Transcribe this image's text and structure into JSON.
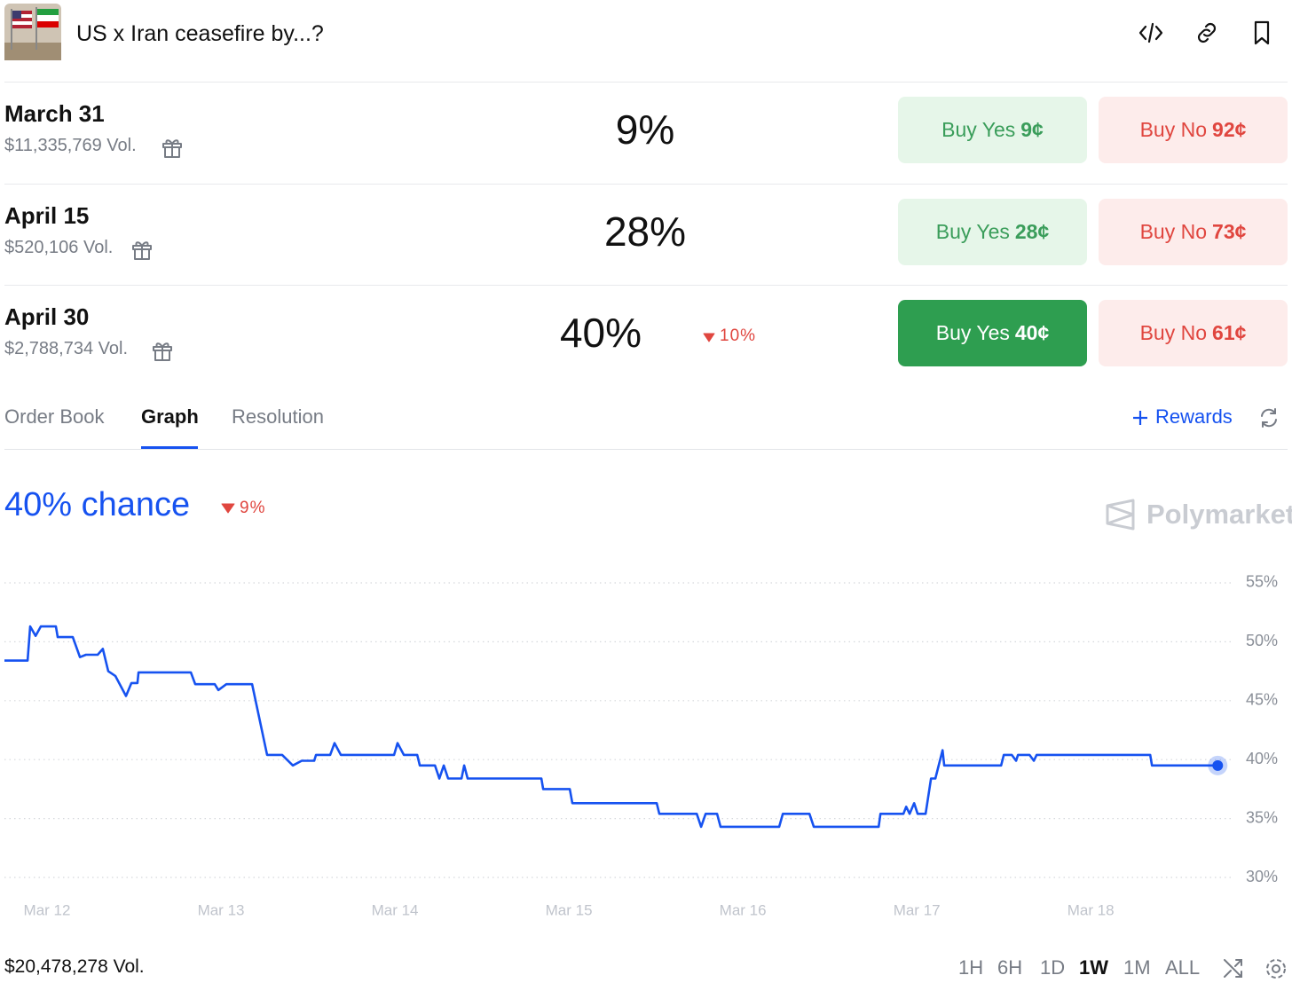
{
  "header": {
    "title": "US x Iran ceasefire by...?"
  },
  "markets": [
    {
      "date": "March 31",
      "volume": "$11,335,769 Vol.",
      "chance": "9%",
      "buy_yes": "Buy Yes",
      "yes_price": "9¢",
      "buy_no": "Buy No",
      "no_price": "92¢"
    },
    {
      "date": "April 15",
      "volume": "$520,106 Vol.",
      "chance": "28%",
      "buy_yes": "Buy Yes",
      "yes_price": "28¢",
      "buy_no": "Buy No",
      "no_price": "73¢"
    },
    {
      "date": "April 30",
      "volume": "$2,788,734 Vol.",
      "chance": "40%",
      "change": "10%",
      "buy_yes": "Buy Yes",
      "yes_price": "40¢",
      "buy_no": "Buy No",
      "no_price": "61¢"
    }
  ],
  "tabs": [
    "Order Book",
    "Graph",
    "Resolution"
  ],
  "rewards": "Rewards",
  "chart_data": {
    "type": "line",
    "title": "40% chance",
    "change": "9%",
    "watermark": "Polymarket",
    "x": [
      -0.245,
      -0.112,
      -0.097,
      -0.066,
      -0.036,
      0.051,
      0.061,
      0.148,
      0.189,
      0.224,
      0.291,
      0.321,
      0.352,
      0.393,
      0.454,
      0.485,
      0.52,
      0.526,
      0.827,
      0.852,
      0.964,
      0.985,
      1.031,
      1.179,
      1.265,
      1.352,
      1.413,
      1.464,
      1.536,
      1.546,
      1.628,
      1.653,
      1.689,
      1.995,
      2.015,
      2.051,
      2.128,
      2.143,
      2.23,
      2.255,
      2.281,
      2.306,
      2.383,
      2.398,
      2.418,
      2.842,
      2.852,
      3.005,
      3.02,
      3.505,
      3.52,
      3.735,
      3.76,
      3.786,
      3.852,
      3.872,
      4.209,
      4.23,
      4.383,
      4.408,
      4.781,
      4.791,
      4.923,
      4.939,
      4.959,
      4.985,
      5.005,
      5.051,
      5.082,
      5.107,
      5.148,
      5.158,
      5.485,
      5.5,
      5.546,
      5.571,
      5.582,
      5.648,
      5.673,
      5.689,
      6.342,
      6.352,
      6.73
    ],
    "series": [
      {
        "color": "#1652f0",
        "values": [
          48.4,
          48.4,
          51.3,
          50.5,
          51.3,
          51.3,
          50.4,
          50.4,
          48.7,
          48.9,
          48.9,
          49.4,
          47.5,
          47.1,
          45.4,
          46.5,
          46.5,
          47.4,
          47.4,
          46.4,
          46.4,
          45.9,
          46.4,
          46.4,
          40.4,
          40.4,
          39.5,
          39.9,
          39.9,
          40.4,
          40.4,
          41.4,
          40.4,
          40.4,
          41.4,
          40.4,
          40.4,
          39.5,
          39.5,
          38.4,
          39.5,
          38.4,
          38.4,
          39.5,
          38.4,
          38.4,
          37.5,
          37.5,
          36.3,
          36.3,
          35.4,
          35.4,
          34.3,
          35.4,
          35.4,
          34.3,
          34.3,
          35.4,
          35.4,
          34.3,
          34.3,
          35.4,
          35.4,
          36.0,
          35.4,
          36.3,
          35.4,
          35.4,
          38.4,
          38.4,
          40.8,
          39.5,
          39.5,
          40.4,
          40.4,
          39.9,
          40.4,
          40.4,
          39.9,
          40.4,
          40.4,
          39.5,
          39.5
        ]
      }
    ],
    "xlim": [
      -0.25,
      6.8
    ],
    "xticks": [
      {
        "value": 0,
        "label": "Mar 12"
      },
      {
        "value": 1,
        "label": "Mar 13"
      },
      {
        "value": 2,
        "label": "Mar 14"
      },
      {
        "value": 3,
        "label": "Mar 15"
      },
      {
        "value": 4,
        "label": "Mar 16"
      },
      {
        "value": 5,
        "label": "Mar 17"
      },
      {
        "value": 6,
        "label": "Mar 18"
      }
    ],
    "ylim": [
      29,
      56
    ],
    "yticks": [
      {
        "value": 30,
        "label": "30%"
      },
      {
        "value": 35,
        "label": "35%"
      },
      {
        "value": 40,
        "label": "40%"
      },
      {
        "value": 45,
        "label": "45%"
      },
      {
        "value": 50,
        "label": "50%"
      },
      {
        "value": 55,
        "label": "55%"
      }
    ],
    "grid": true
  },
  "footer": {
    "volume": "$20,478,278 Vol.",
    "ranges": [
      "1H",
      "6H",
      "1D",
      "1W",
      "1M",
      "ALL"
    ]
  }
}
